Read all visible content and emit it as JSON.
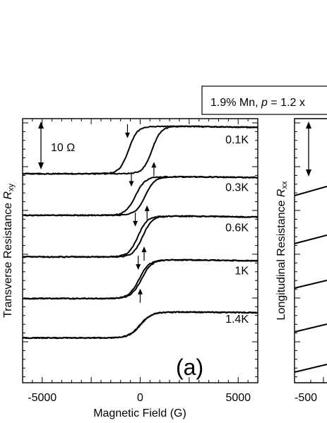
{
  "header": {
    "info_box_text_prefix": "1.9% Mn, ",
    "info_box_text_var": "p",
    "info_box_text_suffix": " = 1.2 x"
  },
  "chart_data": [
    {
      "type": "line",
      "panel_label": "(a)",
      "xlabel": "Magnetic Field (G)",
      "ylabel_text": "Transverse Resistance ",
      "ylabel_symbol": "R",
      "ylabel_subscript": "xy",
      "xlim": [
        -6000,
        6000
      ],
      "x_ticks": [
        -5000,
        0,
        5000
      ],
      "x_tick_labels": [
        "-5000",
        "0",
        "5000"
      ],
      "scale_bar": {
        "label": "10 Ω",
        "value_ohm": 10
      },
      "curves": [
        {
          "label": "0.1K",
          "baseline_ohm": 0,
          "step_ohm": 10.8,
          "coercive_field": 600,
          "width": 450,
          "field_up_arrow": 700,
          "field_down_arrow": -650
        },
        {
          "label": "0.3K",
          "baseline_ohm": -9.5,
          "step_ohm": 8.8,
          "coercive_field": 250,
          "width": 500,
          "field_up_arrow": 350,
          "field_down_arrow": -450
        },
        {
          "label": "0.6K",
          "baseline_ohm": -19,
          "step_ohm": 9.3,
          "coercive_field": 120,
          "width": 480,
          "field_up_arrow": 200,
          "field_down_arrow": -250
        },
        {
          "label": "1K",
          "baseline_ohm": -28.5,
          "step_ohm": 8.8,
          "coercive_field": 60,
          "width": 520,
          "field_up_arrow": 0,
          "field_down_arrow": -100
        },
        {
          "label": "1.4K",
          "baseline_ohm": -37.5,
          "step_ohm": 5.9,
          "coercive_field": 15,
          "width": 580,
          "field_up_arrow": null,
          "field_down_arrow": null
        }
      ]
    },
    {
      "type": "line",
      "xlabel": "",
      "ylabel_text": "Longitudinal Resistance ",
      "ylabel_symbol": "R",
      "ylabel_subscript": "xx",
      "x_tick_labels": [
        "-500"
      ]
    }
  ]
}
